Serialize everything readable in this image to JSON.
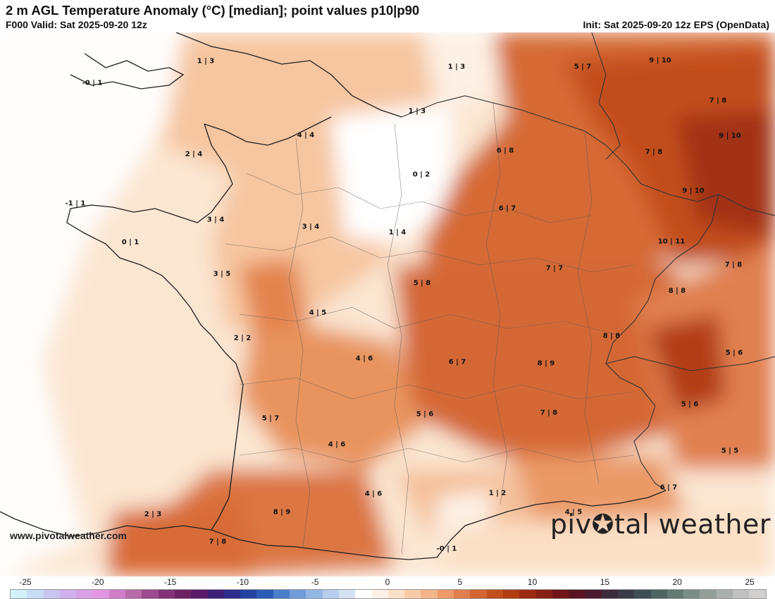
{
  "header": {
    "title": "2 m AGL Temperature Anomaly (°C) [median]; point values p10|p90",
    "valid": "F000 Valid: Sat 2025-09-20 12z",
    "init": "Init: Sat 2025-09-20 12z EPS (OpenData)"
  },
  "footer": {
    "website": "www.pivotalweather.com",
    "logo_left": "piv",
    "logo_gear": "✪",
    "logo_right": "tal weather"
  },
  "colorbar": {
    "ticks": [
      "-25",
      "-20",
      "-15",
      "-10",
      "-5",
      "0",
      "5",
      "10",
      "15",
      "20",
      "25"
    ],
    "colors": [
      "#d2f2fa",
      "#c5ddf6",
      "#c9c4f0",
      "#d0b0ee",
      "#d9a0e8",
      "#e195e0",
      "#d07ec8",
      "#b76aa8",
      "#9c4c8c",
      "#823276",
      "#6e2263",
      "#5a1a6a",
      "#3e1f78",
      "#2e2e8c",
      "#2440a0",
      "#2a5bb6",
      "#4a7ec8",
      "#6f9bd8",
      "#93b6e4",
      "#b6ceee",
      "#d4e2f4",
      "#ffffff",
      "#fdf1e6",
      "#fbe0c8",
      "#f8cba8",
      "#f3b488",
      "#eb9a68",
      "#e07f4c",
      "#d26532",
      "#c24e1e",
      "#b23c12",
      "#9c2c10",
      "#861f14",
      "#6f1618",
      "#5a1420",
      "#4a1c30",
      "#3e2a3e",
      "#3a3a4a",
      "#3e4e56",
      "#4e6460",
      "#627a72",
      "#7a8e88",
      "#949f9a",
      "#aab0ad",
      "#bfc0bf",
      "#d2cfcf"
    ]
  },
  "chart_data": {
    "type": "heatmap",
    "title": "2 m AGL Temperature Anomaly (°C) [median]; point values p10|p90",
    "colorbar_range": [
      -25,
      25
    ],
    "points": [
      {
        "label": "1 | 3",
        "p10": 1,
        "p90": 3
      },
      {
        "label": "-0 | 1",
        "p10": 0,
        "p90": 1
      },
      {
        "label": "1 | 3",
        "p10": 1,
        "p90": 3
      },
      {
        "label": "5 | 7",
        "p10": 5,
        "p90": 7
      },
      {
        "label": "9 | 10",
        "p10": 9,
        "p90": 10
      },
      {
        "label": "7 | 8",
        "p10": 7,
        "p90": 8
      },
      {
        "label": "1 | 3",
        "p10": 1,
        "p90": 3
      },
      {
        "label": "9 | 10",
        "p10": 9,
        "p90": 10
      },
      {
        "label": "4 | 4",
        "p10": 4,
        "p90": 4
      },
      {
        "label": "2 | 4",
        "p10": 2,
        "p90": 4
      },
      {
        "label": "6 | 8",
        "p10": 6,
        "p90": 8
      },
      {
        "label": "7 | 8",
        "p10": 7,
        "p90": 8
      },
      {
        "label": "0 | 2",
        "p10": 0,
        "p90": 2
      },
      {
        "label": "9 | 10",
        "p10": 9,
        "p90": 10
      },
      {
        "label": "-1 | 1",
        "p10": -1,
        "p90": 1
      },
      {
        "label": "6 | 7",
        "p10": 6,
        "p90": 7
      },
      {
        "label": "3 | 4",
        "p10": 3,
        "p90": 4
      },
      {
        "label": "3 | 4",
        "p10": 3,
        "p90": 4
      },
      {
        "label": "1 | 4",
        "p10": 1,
        "p90": 4
      },
      {
        "label": "0 | 1",
        "p10": 0,
        "p90": 1
      },
      {
        "label": "10 | 11",
        "p10": 10,
        "p90": 11
      },
      {
        "label": "7 | 8",
        "p10": 7,
        "p90": 8
      },
      {
        "label": "3 | 5",
        "p10": 3,
        "p90": 5
      },
      {
        "label": "7 | 7",
        "p10": 7,
        "p90": 7
      },
      {
        "label": "5 | 8",
        "p10": 5,
        "p90": 8
      },
      {
        "label": "8 | 8",
        "p10": 8,
        "p90": 8
      },
      {
        "label": "4 | 5",
        "p10": 4,
        "p90": 5
      },
      {
        "label": "2 | 2",
        "p10": 2,
        "p90": 2
      },
      {
        "label": "8 | 8",
        "p10": 8,
        "p90": 8
      },
      {
        "label": "5 | 6",
        "p10": 5,
        "p90": 6
      },
      {
        "label": "4 | 6",
        "p10": 4,
        "p90": 6
      },
      {
        "label": "6 | 7",
        "p10": 6,
        "p90": 7
      },
      {
        "label": "8 | 9",
        "p10": 8,
        "p90": 9
      },
      {
        "label": "5 | 7",
        "p10": 5,
        "p90": 7
      },
      {
        "label": "5 | 6",
        "p10": 5,
        "p90": 6
      },
      {
        "label": "7 | 8",
        "p10": 7,
        "p90": 8
      },
      {
        "label": "5 | 6",
        "p10": 5,
        "p90": 6
      },
      {
        "label": "4 | 6",
        "p10": 4,
        "p90": 6
      },
      {
        "label": "5 | 5",
        "p10": 5,
        "p90": 5
      },
      {
        "label": "1 | 2",
        "p10": 1,
        "p90": 2
      },
      {
        "label": "6 | 7",
        "p10": 6,
        "p90": 7
      },
      {
        "label": "4 | 6",
        "p10": 4,
        "p90": 6
      },
      {
        "label": "2 | 3",
        "p10": 2,
        "p90": 3
      },
      {
        "label": "8 | 9",
        "p10": 8,
        "p90": 9
      },
      {
        "label": "4 | 5",
        "p10": 4,
        "p90": 5
      },
      {
        "label": "7 | 8",
        "p10": 7,
        "p90": 8
      },
      {
        "label": "-0 | 1",
        "p10": 0,
        "p90": 1
      }
    ]
  }
}
